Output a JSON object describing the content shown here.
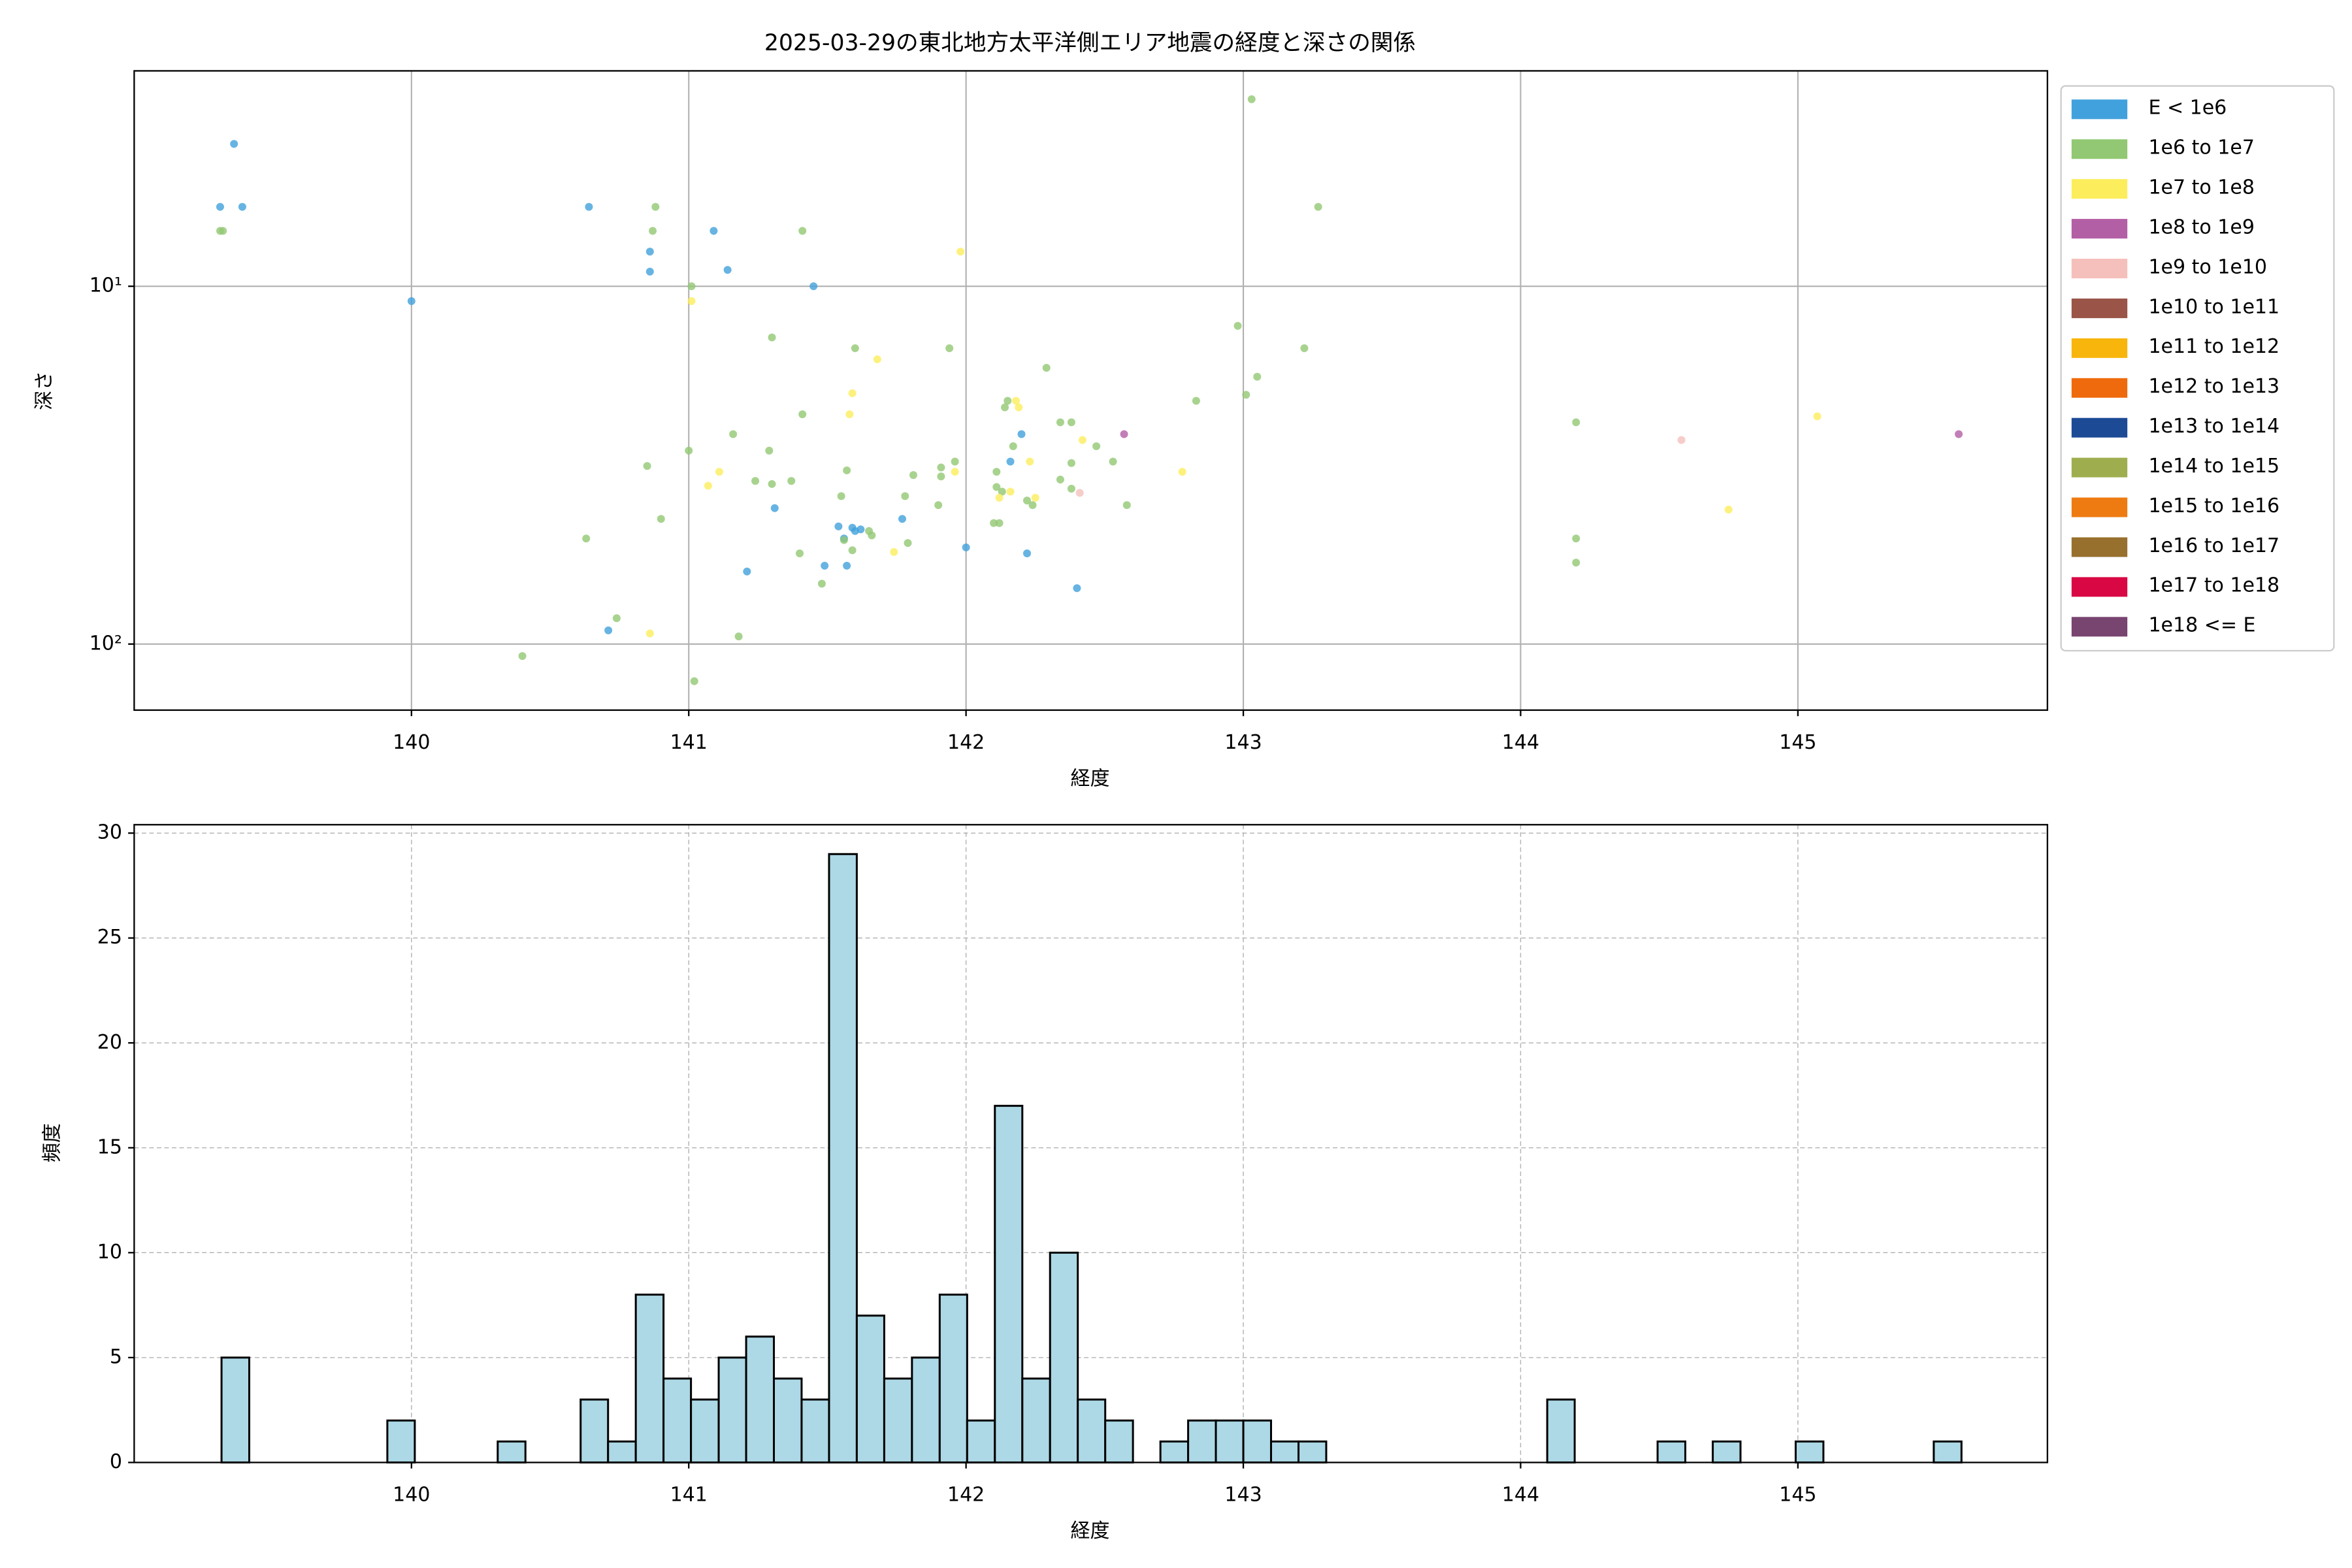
{
  "chart_data": [
    {
      "type": "scatter",
      "title": "2025-03-29の東北地方太平洋側エリア地震の経度と深さの関係",
      "xlabel": "経度",
      "ylabel": "深さ",
      "xlim": [
        139.0,
        145.9
      ],
      "ylim": [
        2.5,
        153
      ],
      "yscale": "log",
      "y_inverted": true,
      "xticks": [
        140,
        141,
        142,
        143,
        144,
        145
      ],
      "yticks": [
        {
          "value": 10,
          "label": "10¹"
        },
        {
          "value": 100,
          "label": "10²"
        }
      ],
      "grid": true,
      "legend": "outside upper right",
      "series": [
        {
          "name": "E < 1e6",
          "color": "#41a1dc",
          "x": [
            139.31,
            139.39,
            139.36,
            140.0,
            140.64,
            140.86,
            140.86,
            141.09,
            141.14,
            141.45,
            142.16,
            142.2,
            141.54,
            141.56,
            141.57,
            141.49,
            141.59,
            141.6,
            141.62,
            141.77,
            142.0,
            141.31,
            141.21,
            140.71,
            142.22,
            142.4
          ],
          "y": [
            6.0,
            6.0,
            4.0,
            11.0,
            6.0,
            8.0,
            9.1,
            7.0,
            9.0,
            10,
            30.9,
            25.9,
            46.9,
            50.7,
            60.4,
            60.4,
            47.3,
            48.3,
            47.8,
            44.7,
            53.7,
            41.7,
            62.7,
            91.6,
            55.8,
            69.8
          ]
        },
        {
          "name": "1e6 to 1e7",
          "color": "#92c873",
          "x": [
            139.31,
            139.32,
            140.88,
            140.87,
            141.41,
            141.01,
            143.03,
            143.27,
            141.3,
            141.6,
            141.94,
            142.98,
            143.05,
            143.22,
            143.01,
            142.83,
            142.29,
            142.14,
            142.15,
            142.38,
            142.34,
            144.2,
            141.41,
            141.16,
            141.0,
            141.29,
            140.85,
            141.57,
            141.24,
            141.37,
            141.3,
            141.81,
            141.96,
            141.91,
            141.91,
            141.78,
            141.55,
            142.11,
            142.11,
            142.17,
            142.53,
            142.38,
            142.34,
            142.38,
            142.22,
            142.24,
            142.58,
            142.13,
            140.63,
            140.9,
            142.1,
            142.12,
            141.79,
            141.65,
            141.66,
            141.56,
            141.59,
            141.4,
            141.48,
            140.74,
            141.18,
            140.4,
            141.02,
            144.2,
            144.2,
            142.47,
            141.9
          ],
          "y": [
            7.0,
            7.0,
            6.0,
            7.0,
            7.0,
            10,
            3.0,
            6.0,
            13.9,
            14.9,
            14.9,
            12.9,
            17.9,
            14.9,
            20.1,
            20.9,
            16.9,
            21.8,
            20.9,
            24.0,
            24.0,
            24.0,
            22.8,
            25.9,
            28.8,
            28.8,
            31.8,
            32.7,
            35.0,
            35.0,
            35.7,
            33.7,
            30.9,
            32.1,
            34.0,
            38.6,
            38.6,
            33.0,
            36.4,
            28.0,
            30.9,
            31.2,
            34.7,
            36.8,
            39.7,
            40.9,
            40.9,
            37.5,
            50.7,
            44.7,
            45.9,
            45.9,
            52.2,
            48.3,
            49.7,
            51.2,
            54.7,
            55.8,
            67.8,
            84.7,
            95.2,
            108,
            127,
            50.7,
            59.2,
            28.0,
            40.9
          ]
        },
        {
          "name": "1e7 to 1e8",
          "color": "#fced5c",
          "x": [
            141.01,
            141.98,
            141.68,
            141.59,
            141.58,
            142.18,
            142.19,
            142.42,
            142.23,
            141.96,
            141.11,
            141.07,
            142.16,
            142.25,
            142.12,
            142.78,
            141.74,
            140.86,
            145.07,
            144.75
          ],
          "y": [
            11.0,
            8.0,
            16.0,
            19.9,
            22.8,
            20.9,
            21.8,
            26.9,
            30.9,
            33.0,
            33.0,
            36.1,
            37.5,
            39.0,
            39.0,
            33.0,
            55.3,
            93.4,
            23.1,
            42.1
          ]
        },
        {
          "name": "1e8 to 1e9",
          "color": "#b35fa5",
          "x": [
            142.57,
            145.58
          ],
          "y": [
            25.9,
            25.9
          ]
        },
        {
          "name": "1e9 to 1e10",
          "color": "#f5c0bb",
          "x": [
            144.58,
            142.41
          ],
          "y": [
            26.9,
            37.8
          ]
        },
        {
          "name": "1e10 to 1e11",
          "color": "#9a5448",
          "x": [],
          "y": []
        },
        {
          "name": "1e11 to 1e12",
          "color": "#f8b50c",
          "x": [],
          "y": []
        },
        {
          "name": "1e12 to 1e13",
          "color": "#ef6a0c",
          "x": [],
          "y": []
        },
        {
          "name": "1e13 to 1e14",
          "color": "#1c4a95",
          "x": [],
          "y": []
        },
        {
          "name": "1e14 to 1e15",
          "color": "#9eae4f",
          "x": [],
          "y": []
        },
        {
          "name": "1e15 to 1e16",
          "color": "#ee7b12",
          "x": [],
          "y": []
        },
        {
          "name": "1e16 to 1e17",
          "color": "#97702e",
          "x": [],
          "y": []
        },
        {
          "name": "1e17 to 1e18",
          "color": "#d90844",
          "x": [],
          "y": []
        },
        {
          "name": "1e18 <= E",
          "color": "#784470",
          "x": [],
          "y": []
        }
      ]
    },
    {
      "type": "histogram",
      "xlabel": "経度",
      "ylabel": "頻度",
      "xlim": [
        139.0,
        145.9
      ],
      "ylim": [
        0,
        30.4
      ],
      "xticks": [
        140,
        141,
        142,
        143,
        144,
        145
      ],
      "yticks": [
        0,
        5,
        10,
        15,
        20,
        25,
        30
      ],
      "grid": "dashed",
      "color": "#add8e6",
      "edgecolor": "#000000",
      "bins": [
        139.315,
        139.415,
        139.514,
        139.614,
        139.713,
        139.813,
        139.913,
        140.012,
        140.112,
        140.211,
        140.311,
        140.411,
        140.51,
        140.61,
        140.709,
        140.809,
        140.909,
        141.008,
        141.108,
        141.207,
        141.307,
        141.407,
        141.506,
        141.606,
        141.705,
        141.805,
        141.905,
        142.004,
        142.104,
        142.203,
        142.303,
        142.403,
        142.502,
        142.602,
        142.701,
        142.801,
        142.901,
        143.0,
        143.1,
        143.199,
        143.299,
        143.399,
        143.498,
        143.598,
        143.697,
        143.797,
        143.897,
        143.996,
        144.096,
        144.195,
        144.295,
        144.395,
        144.494,
        144.594,
        144.693,
        144.793,
        144.893,
        144.992,
        145.092,
        145.191,
        145.291,
        145.391,
        145.49,
        145.59
      ],
      "counts": [
        5,
        0,
        0,
        0,
        0,
        0,
        2,
        0,
        0,
        0,
        1,
        0,
        0,
        3,
        1,
        8,
        4,
        3,
        5,
        6,
        4,
        3,
        29,
        7,
        4,
        5,
        8,
        2,
        17,
        4,
        10,
        3,
        2,
        0,
        1,
        2,
        2,
        2,
        1,
        1,
        0,
        0,
        0,
        0,
        0,
        0,
        0,
        0,
        3,
        0,
        0,
        0,
        1,
        0,
        1,
        0,
        0,
        1,
        0,
        0,
        0,
        0,
        1
      ]
    }
  ]
}
